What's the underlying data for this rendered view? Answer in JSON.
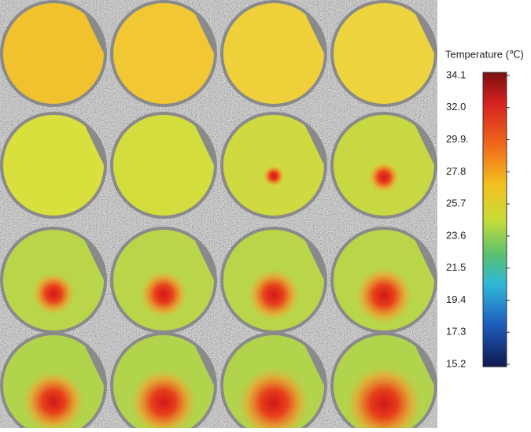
{
  "colorbar": {
    "title": "Temperature (℃)",
    "range": [
      15.2,
      34.1
    ],
    "ticks": [
      {
        "value": 34.1,
        "label": "34.1"
      },
      {
        "value": 32.0,
        "label": "32.0"
      },
      {
        "value": 29.9,
        "label": "29.9."
      },
      {
        "value": 27.8,
        "label": "27.8"
      },
      {
        "value": 25.7,
        "label": "25.7"
      },
      {
        "value": 23.6,
        "label": "23.6"
      },
      {
        "value": 21.5,
        "label": "21.5"
      },
      {
        "value": 19.4,
        "label": "19.4"
      },
      {
        "value": 17.3,
        "label": "17.3"
      },
      {
        "value": 15.2,
        "label": "15.2"
      }
    ]
  }
}
